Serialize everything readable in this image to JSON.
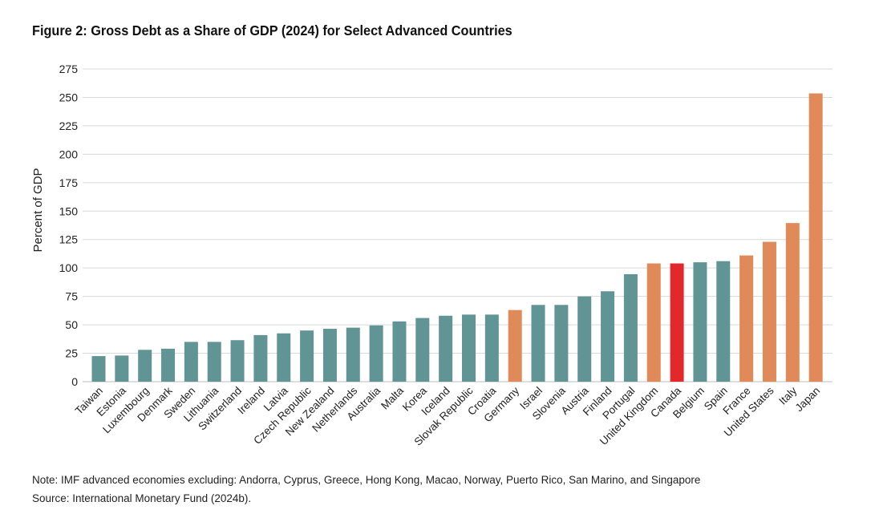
{
  "chart_data": {
    "type": "bar",
    "title": "Figure 2: Gross Debt as a Share of GDP (2024) for Select Advanced Countries",
    "xlabel": "",
    "ylabel": "Percent of GDP",
    "ylim": [
      0,
      275
    ],
    "yticks": [
      0,
      25,
      50,
      75,
      100,
      125,
      150,
      175,
      200,
      225,
      250,
      275
    ],
    "grid": true,
    "categories": [
      "Taiwan",
      "Estonia",
      "Luxembourg",
      "Denmark",
      "Sweden",
      "Lithuania",
      "Switzerland",
      "Ireland",
      "Latvia",
      "Czech Republic",
      "New Zealand",
      "Netherlands",
      "Australia",
      "Malta",
      "Korea",
      "Iceland",
      "Slovak Republic",
      "Croatia",
      "Germany",
      "Israel",
      "Slovenia",
      "Austria",
      "Finland",
      "Portugal",
      "United Kingdom",
      "Canada",
      "Belgium",
      "Spain",
      "France",
      "United States",
      "Italy",
      "Japan"
    ],
    "values": [
      22.5,
      23,
      28,
      29,
      35,
      35,
      36.5,
      41,
      42.5,
      45,
      46.5,
      47.5,
      49.5,
      53,
      56,
      58,
      59,
      59,
      63,
      67.5,
      67.5,
      75,
      79.5,
      94.5,
      104,
      104,
      105,
      106,
      111,
      123,
      139.5,
      253.5
    ],
    "bar_colors": [
      "#619494",
      "#619494",
      "#619494",
      "#619494",
      "#619494",
      "#619494",
      "#619494",
      "#619494",
      "#619494",
      "#619494",
      "#619494",
      "#619494",
      "#619494",
      "#619494",
      "#619494",
      "#619494",
      "#619494",
      "#619494",
      "#e08a5a",
      "#619494",
      "#619494",
      "#619494",
      "#619494",
      "#619494",
      "#e08a5a",
      "#e3282c",
      "#619494",
      "#619494",
      "#e08a5a",
      "#e08a5a",
      "#e08a5a",
      "#e08a5a"
    ]
  },
  "notes": {
    "note": "Note: IMF advanced economies excluding: Andorra, Cyprus, Greece, Hong Kong, Macao, Norway, Puerto Rico, San Marino, and Singapore",
    "source": "Source: International Monetary Fund (2024b)."
  }
}
